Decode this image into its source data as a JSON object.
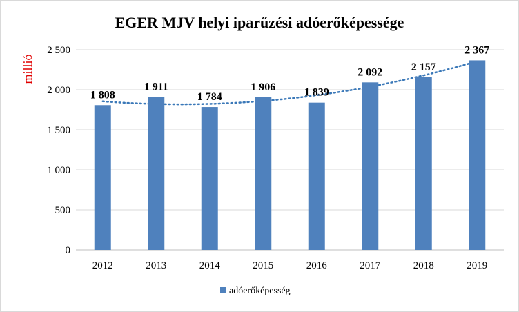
{
  "chart_data": {
    "type": "bar",
    "title": "EGER MJV helyi iparűzési adóerőképessége",
    "ylabel": "millió",
    "xlabel": "",
    "categories": [
      "2012",
      "2013",
      "2014",
      "2015",
      "2016",
      "2017",
      "2018",
      "2019"
    ],
    "series": [
      {
        "name": "adóerőképesség",
        "values": [
          1808,
          1911,
          1784,
          1906,
          1839,
          2092,
          2157,
          2367
        ],
        "data_labels": [
          "1 808",
          "1 911",
          "1 784",
          "1 906",
          "1 839",
          "2 092",
          "2 157",
          "2 367"
        ],
        "color": "#4f81bd"
      }
    ],
    "ylim": [
      0,
      2500
    ],
    "yticks": [
      0,
      500,
      1000,
      1500,
      2000,
      2500
    ],
    "ytick_labels": [
      "0",
      "500",
      "1 000",
      "1 500",
      "2 000",
      "2 500"
    ],
    "trendline": {
      "type": "polynomial",
      "style": "dotted",
      "color": "#3a78b8"
    },
    "grid": true,
    "legend": "bottom-center"
  }
}
